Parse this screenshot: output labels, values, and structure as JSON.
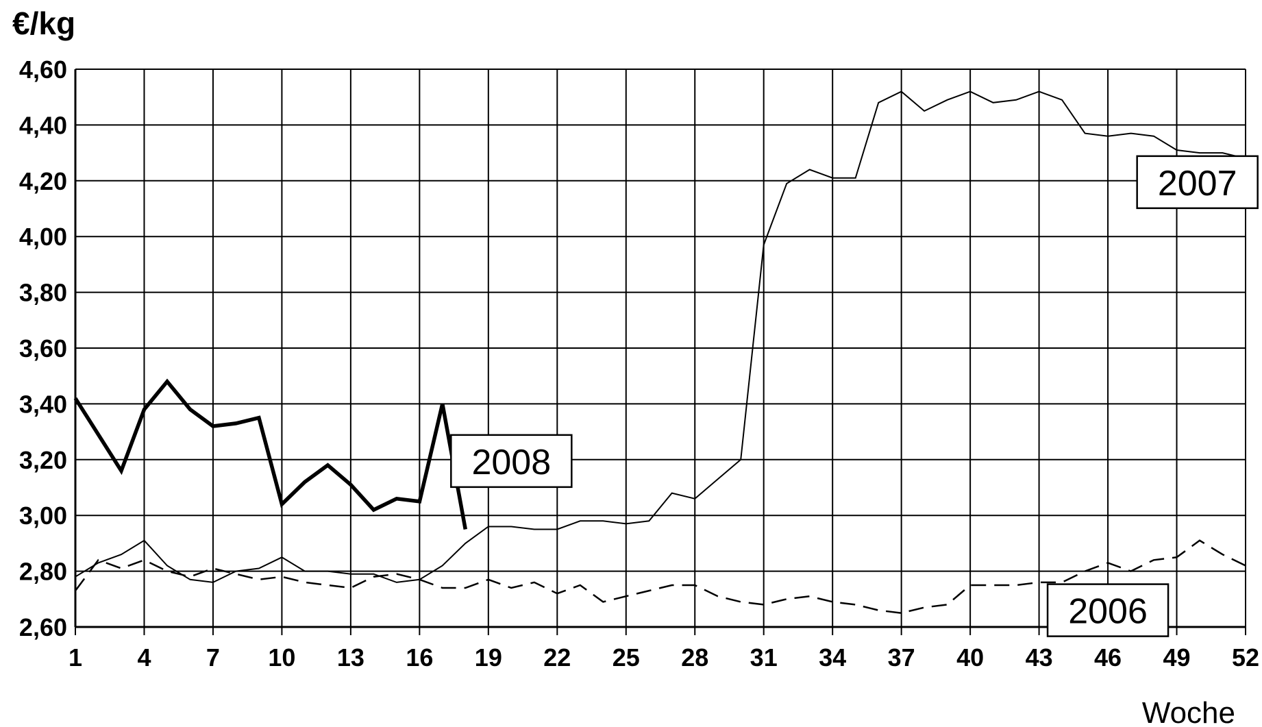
{
  "chart_data": {
    "type": "line",
    "ylabel": "€/kg",
    "xlabel": "Woche",
    "ylim": [
      2.6,
      4.6
    ],
    "xlim": [
      1,
      52
    ],
    "y_ticks": [
      "2,60",
      "2,80",
      "3,00",
      "3,20",
      "3,40",
      "3,60",
      "3,80",
      "4,00",
      "4,20",
      "4,40",
      "4,60"
    ],
    "x_ticks": [
      "1",
      "4",
      "7",
      "10",
      "13",
      "16",
      "19",
      "22",
      "25",
      "28",
      "31",
      "34",
      "37",
      "40",
      "43",
      "46",
      "49",
      "52"
    ],
    "grid": true,
    "footnote": "",
    "series": [
      {
        "name": "2006",
        "style": "dashed",
        "x": [
          1,
          2,
          3,
          4,
          5,
          6,
          7,
          8,
          9,
          10,
          11,
          12,
          13,
          14,
          15,
          16,
          17,
          18,
          19,
          20,
          21,
          22,
          23,
          24,
          25,
          26,
          27,
          28,
          29,
          30,
          31,
          32,
          33,
          34,
          35,
          36,
          37,
          38,
          39,
          40,
          41,
          42,
          43,
          44,
          45,
          46,
          47,
          48,
          49,
          50,
          51,
          52
        ],
        "values": [
          2.73,
          2.84,
          2.81,
          2.84,
          2.8,
          2.78,
          2.81,
          2.79,
          2.77,
          2.78,
          2.76,
          2.75,
          2.74,
          2.78,
          2.79,
          2.77,
          2.74,
          2.74,
          2.77,
          2.74,
          2.76,
          2.72,
          2.75,
          2.69,
          2.71,
          2.73,
          2.75,
          2.75,
          2.71,
          2.69,
          2.68,
          2.7,
          2.71,
          2.69,
          2.68,
          2.66,
          2.65,
          2.67,
          2.68,
          2.75,
          2.75,
          2.75,
          2.76,
          2.76,
          2.8,
          2.83,
          2.8,
          2.84,
          2.85,
          2.91,
          2.86,
          2.82
        ]
      },
      {
        "name": "2007",
        "style": "thin",
        "x": [
          1,
          2,
          3,
          4,
          5,
          6,
          7,
          8,
          9,
          10,
          11,
          12,
          13,
          14,
          15,
          16,
          17,
          18,
          19,
          20,
          21,
          22,
          23,
          24,
          25,
          26,
          27,
          28,
          29,
          30,
          31,
          32,
          33,
          34,
          35,
          36,
          37,
          38,
          39,
          40,
          41,
          42,
          43,
          44,
          45,
          46,
          47,
          48,
          49,
          50,
          51,
          52
        ],
        "values": [
          2.78,
          2.83,
          2.86,
          2.91,
          2.82,
          2.77,
          2.76,
          2.8,
          2.81,
          2.85,
          2.8,
          2.8,
          2.79,
          2.79,
          2.76,
          2.77,
          2.82,
          2.9,
          2.96,
          2.96,
          2.95,
          2.95,
          2.98,
          2.98,
          2.97,
          2.98,
          3.08,
          3.06,
          3.13,
          3.2,
          3.97,
          4.19,
          4.24,
          4.21,
          4.21,
          4.48,
          4.52,
          4.45,
          4.49,
          4.52,
          4.48,
          4.49,
          4.52,
          4.49,
          4.37,
          4.36,
          4.37,
          4.36,
          4.31,
          4.3,
          4.3,
          4.28
        ]
      },
      {
        "name": "2008",
        "style": "bold",
        "x": [
          1,
          2,
          3,
          4,
          5,
          6,
          7,
          8,
          9,
          10,
          11,
          12,
          13,
          14,
          15,
          16,
          17,
          18
        ],
        "values": [
          3.42,
          3.29,
          3.16,
          3.38,
          3.48,
          3.38,
          3.32,
          3.33,
          3.35,
          3.04,
          3.12,
          3.18,
          3.11,
          3.02,
          3.06,
          3.05,
          3.4,
          2.95
        ]
      }
    ],
    "labels": [
      {
        "series": "2008",
        "text": "2008",
        "anchor_x": 20.0,
        "anchor_y": 3.195
      },
      {
        "series": "2007",
        "text": "2007",
        "anchor_x": 49.9,
        "anchor_y": 4.195
      },
      {
        "series": "2006",
        "text": "2006",
        "anchor_x": 46.0,
        "anchor_y": 2.66
      }
    ]
  }
}
